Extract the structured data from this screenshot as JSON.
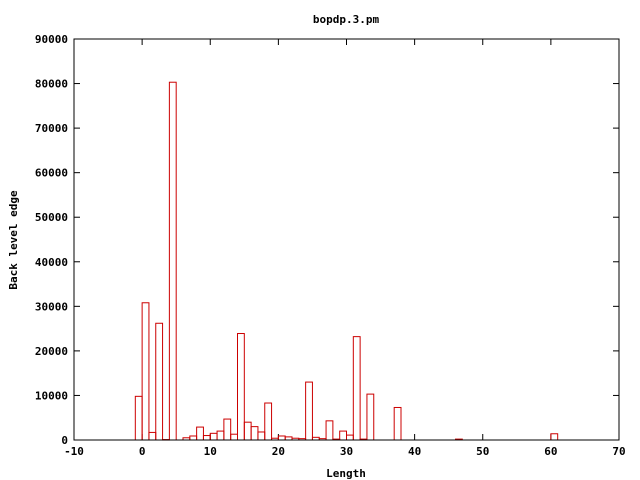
{
  "chart_data": {
    "type": "bar",
    "title": "bopdp.3.pm",
    "xlabel": "Length",
    "ylabel": "Back level edge",
    "xlim": [
      -10,
      70
    ],
    "ylim": [
      0,
      90000
    ],
    "xticks": [
      -10,
      0,
      10,
      20,
      30,
      40,
      50,
      60,
      70
    ],
    "yticks": [
      0,
      10000,
      20000,
      30000,
      40000,
      50000,
      60000,
      70000,
      80000,
      90000
    ],
    "grid": false,
    "legend": "none",
    "bar_color": "#cc0000",
    "bar_width": 1,
    "series": [
      {
        "x": [
          -0.5,
          0.5,
          1.5,
          2.5,
          3.5,
          4.5,
          6.5,
          7.5,
          8.5,
          9.5,
          10.5,
          11.5,
          12.5,
          13.5,
          14.5,
          15.5,
          16.5,
          17.5,
          18.5,
          19.5,
          20.5,
          21.5,
          22.5,
          23.5,
          24.5,
          25.5,
          26.5,
          27.5,
          28.5,
          29.5,
          30.5,
          31.5,
          32.5,
          33.5,
          37.5,
          46.5,
          60.5
        ],
        "values": [
          9800,
          30800,
          1700,
          26200,
          100,
          80300,
          500,
          900,
          2900,
          1000,
          1500,
          2000,
          4700,
          1300,
          23900,
          4000,
          3000,
          1800,
          8300,
          400,
          900,
          700,
          400,
          300,
          13000,
          600,
          300,
          4300,
          200,
          2000,
          1100,
          23200,
          200,
          10300,
          7300,
          200,
          1400
        ]
      }
    ]
  }
}
